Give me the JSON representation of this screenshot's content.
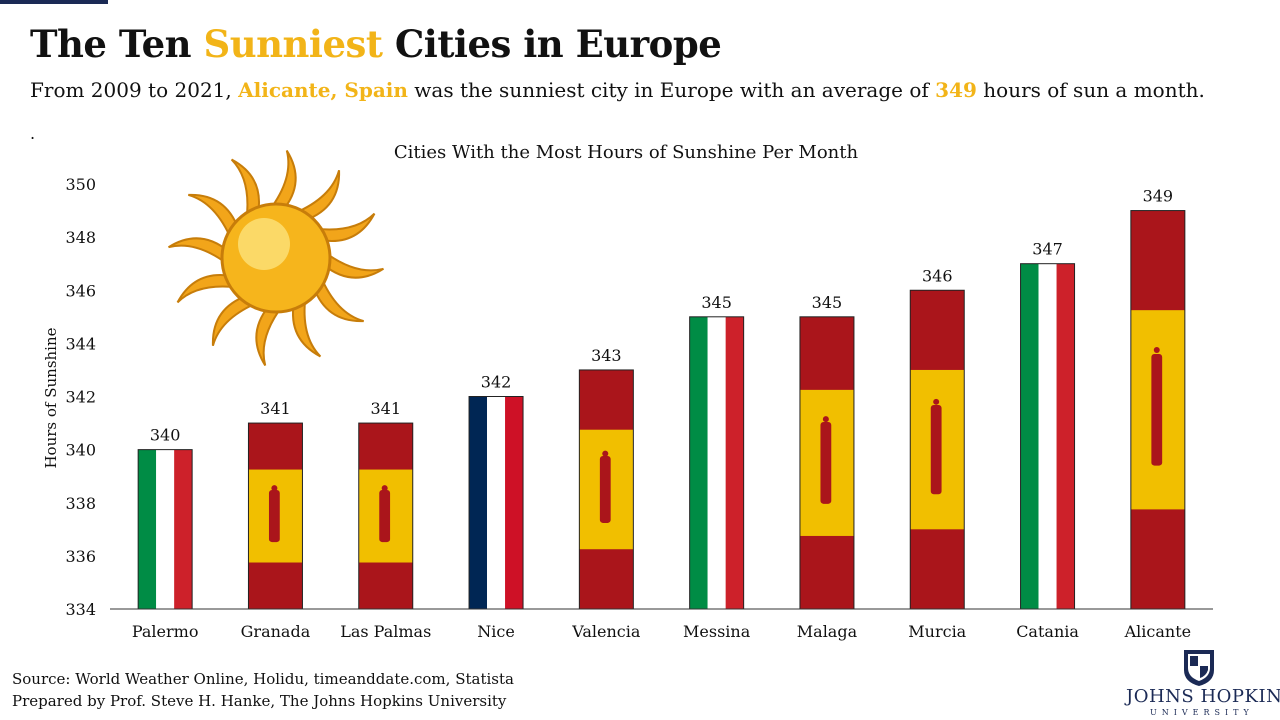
{
  "header": {
    "title_part1": "The Ten",
    "title_highlight": "Sunniest",
    "title_part2": "Cities in Europe",
    "subtitle_part1": "From 2009 to 2021,",
    "subtitle_city": "Alicante, Spain",
    "subtitle_part2": "was the sunniest city in Europe with an average of",
    "subtitle_value": "349",
    "subtitle_part3": "hours of sun a month.",
    "stray_dot": "."
  },
  "colors": {
    "accent_gold": "#f2b418",
    "spain_red": "#aa151b",
    "spain_yellow": "#f1bf00",
    "italy_green": "#008c45",
    "italy_red": "#cd212a",
    "france_blue": "#002654",
    "france_red": "#ce1126",
    "brand_navy": "#1b2a55"
  },
  "chart_data": {
    "type": "bar",
    "title": "Cities With the Most Hours of Sunshine Per Month",
    "ylabel": "Hours of Sunshine",
    "xlabel": "",
    "ylim": [
      334,
      350
    ],
    "yticks": [
      334,
      336,
      338,
      340,
      342,
      344,
      346,
      348,
      350
    ],
    "categories": [
      "Palermo",
      "Granada",
      "Las Palmas",
      "Nice",
      "Valencia",
      "Messina",
      "Malaga",
      "Murcia",
      "Catania",
      "Alicante"
    ],
    "values": [
      340,
      341,
      341,
      342,
      343,
      345,
      345,
      346,
      347,
      349
    ],
    "flags": [
      "italy",
      "spain",
      "spain",
      "france",
      "spain",
      "italy",
      "spain",
      "spain",
      "italy",
      "spain"
    ],
    "decoration": "sun-illustration"
  },
  "footer": {
    "source": "Source: World Weather Online, Holidu, timeanddate.com, Statista",
    "prepared_by": "Prepared by Prof. Steve H. Hanke, The Johns Hopkins University",
    "logo_name": "JOHNS HOPKINS",
    "logo_sub": "UNIVERSITY",
    "logo_icon": "jhu-shield-icon"
  }
}
